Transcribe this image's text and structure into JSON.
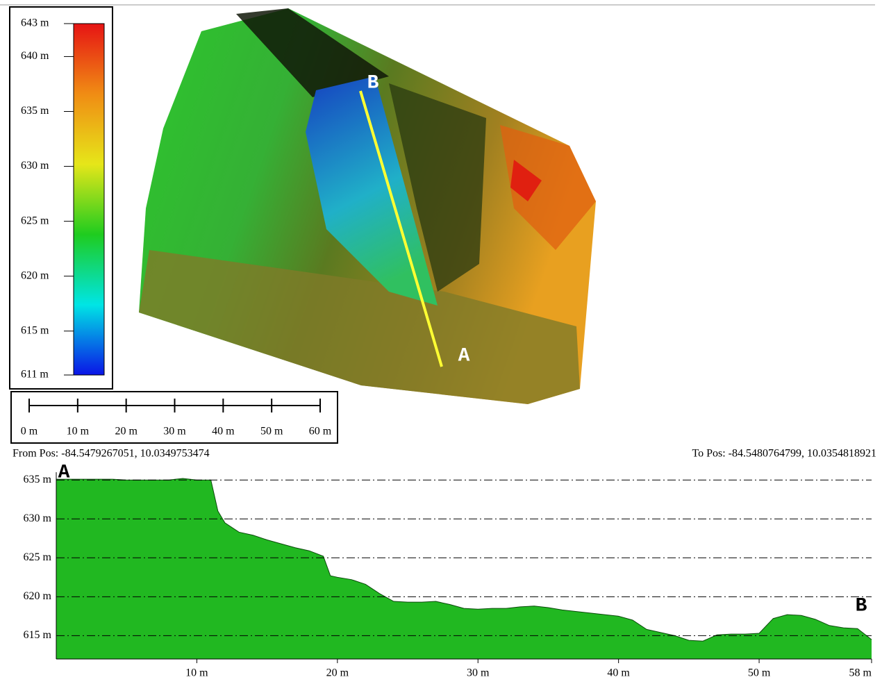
{
  "legend": {
    "ticks": [
      {
        "value": 643,
        "label": "643 m"
      },
      {
        "value": 640,
        "label": "640 m"
      },
      {
        "value": 635,
        "label": "635 m"
      },
      {
        "value": 630,
        "label": "630 m"
      },
      {
        "value": 625,
        "label": "625 m"
      },
      {
        "value": 620,
        "label": "620 m"
      },
      {
        "value": 615,
        "label": "615 m"
      },
      {
        "value": 611,
        "label": "611 m"
      }
    ],
    "lim": [
      611,
      643
    ],
    "colors": [
      "#0a14e6",
      "#00e5e5",
      "#1fcc1f",
      "#e6e619",
      "#f08c14",
      "#e61414"
    ]
  },
  "scale_bar": {
    "ticks": [
      {
        "value": 0,
        "label": "0 m"
      },
      {
        "value": 10,
        "label": "10 m"
      },
      {
        "value": 20,
        "label": "20 m"
      },
      {
        "value": 30,
        "label": "30 m"
      },
      {
        "value": 40,
        "label": "40 m"
      },
      {
        "value": 50,
        "label": "50 m"
      },
      {
        "value": 60,
        "label": "60 m"
      }
    ]
  },
  "map": {
    "point_a": "A",
    "point_b": "B",
    "line_color": "#ffff33"
  },
  "from_pos": "From Pos: -84.5479267051, 10.0349753474",
  "to_pos": "To Pos: -84.5480764799, 10.0354818921",
  "chart_data": {
    "type": "area",
    "color": "#21b821",
    "x": [
      0,
      1,
      2,
      3,
      4,
      5,
      6,
      7,
      8,
      9,
      10,
      11,
      11.5,
      12,
      13,
      14,
      15,
      16,
      17,
      18,
      19,
      19.5,
      20,
      21,
      22,
      23,
      24,
      25,
      26,
      27,
      28,
      29,
      30,
      31,
      32,
      33,
      34,
      35,
      36,
      37,
      38,
      39,
      40,
      41,
      42,
      43,
      44,
      45,
      46,
      47,
      48,
      49,
      50,
      51,
      52,
      53,
      54,
      55,
      56,
      57,
      58
    ],
    "values": [
      635.1,
      635.1,
      635.1,
      635.1,
      635.1,
      635,
      635,
      635,
      635,
      635.2,
      635,
      635,
      631,
      629.5,
      628.3,
      627.9,
      627.3,
      626.8,
      626.3,
      625.9,
      625.2,
      622.7,
      622.5,
      622.2,
      621.6,
      620.4,
      619.4,
      619.3,
      619.3,
      619.4,
      619,
      618.5,
      618.4,
      618.5,
      618.5,
      618.7,
      618.8,
      618.6,
      618.3,
      618.1,
      617.9,
      617.7,
      617.5,
      617,
      615.8,
      615.4,
      615,
      614.4,
      614.3,
      615.1,
      615.2,
      615.2,
      615.3,
      617.2,
      617.7,
      617.6,
      617.1,
      616.3,
      616,
      615.9,
      614.5
    ],
    "xlim": [
      0,
      58
    ],
    "ylim": [
      612,
      636
    ],
    "xticks": [
      {
        "value": 10,
        "label": "10 m"
      },
      {
        "value": 20,
        "label": "20 m"
      },
      {
        "value": 30,
        "label": "30 m"
      },
      {
        "value": 40,
        "label": "40 m"
      },
      {
        "value": 50,
        "label": "50 m"
      },
      {
        "value": 58,
        "label": "58 m"
      }
    ],
    "yticks": [
      {
        "value": 615,
        "label": "615 m"
      },
      {
        "value": 620,
        "label": "620 m"
      },
      {
        "value": 625,
        "label": "625 m"
      },
      {
        "value": 630,
        "label": "630 m"
      },
      {
        "value": 635,
        "label": "635 m"
      }
    ],
    "grid": true,
    "start_label": "A",
    "end_label": "B"
  }
}
